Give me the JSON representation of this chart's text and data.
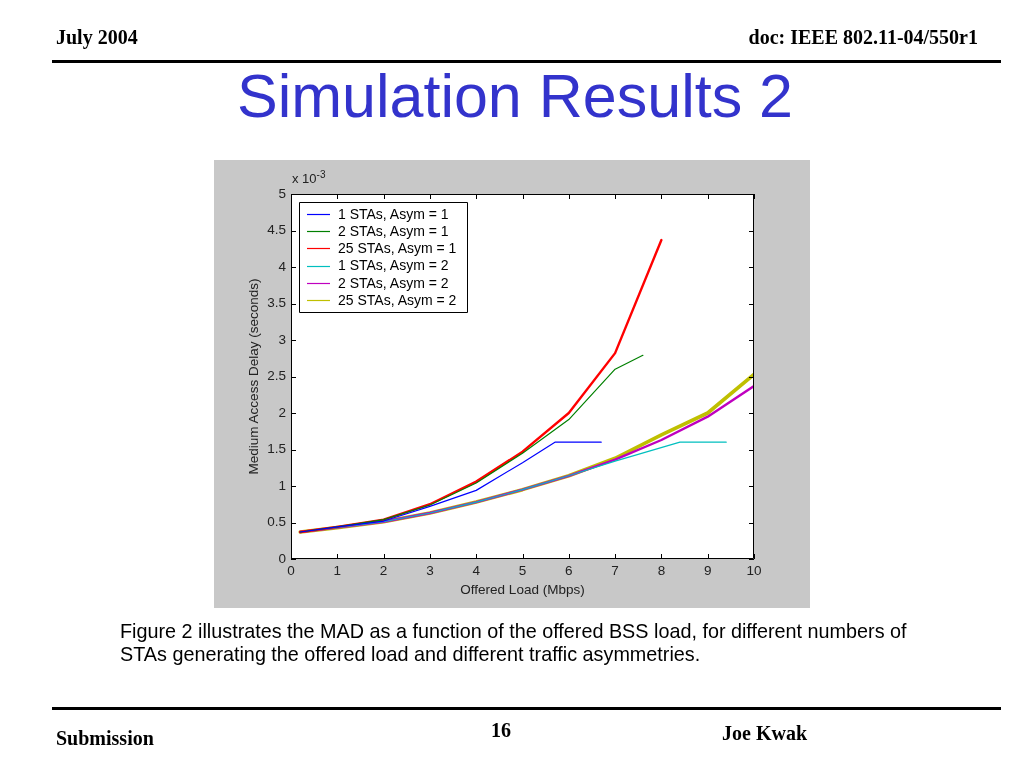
{
  "chart_data": {
    "type": "line",
    "title": "Simulation Results 2",
    "xlabel": "Offered Load (Mbps)",
    "ylabel": "Medium Access Delay (seconds)",
    "annotations": [
      "July 2004",
      "doc: IEEE 802.11-04/550r1",
      "x 10$^{-3}$",
      "Figure 2 illustrates the MAD as a function of the offered BSS load, for different numbers of STAs generating the offered load and different traffic asymmetries.",
      "Submission",
      "16",
      "Joe Kwak"
    ],
    "xlim": [
      0,
      10
    ],
    "xticks": [
      0,
      1,
      2,
      3,
      4,
      5,
      6,
      7,
      8,
      9,
      10
    ],
    "ylim": [
      0,
      5
    ],
    "yticks": [
      0,
      0.5,
      1,
      1.5,
      2,
      2.5,
      3,
      3.5,
      4,
      4.5,
      5
    ],
    "legend": "top left",
    "series": [
      {
        "name": "1 STAs, Asym = 1",
        "color": "#0000ff",
        "x": [
          0.2,
          1,
          2,
          3,
          4,
          5,
          5.7,
          6.7
        ],
        "values": [
          0.37,
          0.44,
          0.52,
          0.72,
          0.94,
          1.32,
          1.6,
          1.6
        ]
      },
      {
        "name": "2 STAs, Asym = 1",
        "color": "#008000",
        "x": [
          0.2,
          1,
          2,
          3,
          4,
          5,
          6,
          7,
          7.6
        ],
        "values": [
          0.37,
          0.44,
          0.54,
          0.74,
          1.04,
          1.45,
          1.91,
          2.6,
          2.79
        ]
      },
      {
        "name": "25 STAs, Asym = 1",
        "color": "#ff0000",
        "x": [
          0.2,
          1,
          2,
          3,
          4,
          5,
          6,
          7,
          8
        ],
        "values": [
          0.37,
          0.44,
          0.54,
          0.75,
          1.06,
          1.47,
          2.0,
          2.82,
          4.37
        ]
      },
      {
        "name": "1 STAs, Asym = 2",
        "color": "#00bfbf",
        "x": [
          0.2,
          1,
          2,
          3,
          4,
          5,
          6,
          7,
          8.4,
          9.4
        ],
        "values": [
          0.37,
          0.43,
          0.51,
          0.63,
          0.78,
          0.95,
          1.14,
          1.34,
          1.6,
          1.6
        ]
      },
      {
        "name": "2 STAs, Asym = 2",
        "color": "#bf00bf",
        "x": [
          0.2,
          1,
          2,
          3,
          4,
          5,
          6,
          7,
          8,
          9,
          10
        ],
        "values": [
          0.37,
          0.43,
          0.51,
          0.63,
          0.78,
          0.95,
          1.14,
          1.36,
          1.63,
          1.95,
          2.37
        ]
      },
      {
        "name": "25 STAs, Asym = 2",
        "color": "#bfbf00",
        "x": [
          0.2,
          1,
          2,
          3,
          4,
          5,
          6,
          7,
          8,
          9,
          10
        ],
        "values": [
          0.37,
          0.43,
          0.51,
          0.63,
          0.78,
          0.95,
          1.14,
          1.38,
          1.7,
          2.0,
          2.53
        ]
      }
    ]
  }
}
